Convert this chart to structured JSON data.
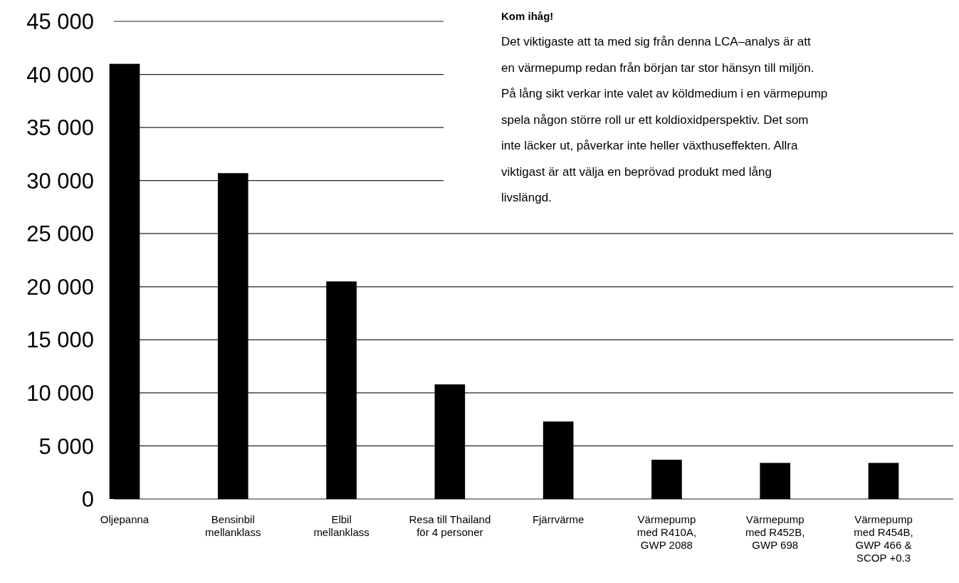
{
  "chart_data": {
    "type": "bar",
    "categories": [
      "Oljepanna",
      "Bensinbil\nmellanklass",
      "Elbil\nmellanklass",
      "Resa till Thailand\nför 4 personer",
      "Fjärrvärme",
      "Värmepump\nmed R410A,\nGWP 2088",
      "Värmepump\nmed R452B,\nGWP 698",
      "Värmepump\nmed R454B,\nGWP 466 &\nSCOP +0.3"
    ],
    "values": [
      41000,
      30700,
      20500,
      10800,
      7300,
      3700,
      3400,
      3400
    ],
    "color": "#000000",
    "ylim": [
      0,
      45000
    ],
    "yticks": [
      0,
      {
        "value": 5000,
        "label": "5 000"
      },
      {
        "value": 10000,
        "label": "10 000"
      },
      {
        "value": 15000,
        "label": "15 000"
      },
      {
        "value": 20000,
        "label": "20 000"
      },
      {
        "value": 25000,
        "label": "25 000"
      },
      {
        "value": 30000,
        "label": "30 000"
      },
      {
        "value": 35000,
        "label": "35 000"
      },
      {
        "value": 40000,
        "label": "40 000"
      },
      {
        "value": 45000,
        "label": "45 000"
      }
    ],
    "grid": "y",
    "annotations": [
      "Kom ihåg!",
      "Det viktigaste att ta med sig från denna LCA–analys är att en värmepump redan från början tar stor hänsyn till miljön. På lång sikt verkar inte valet av köldmedium i en värmepump spela någon större roll ur ett koldioxidperspektiv. Det som inte läcker ut, påverkar inte heller växthuseffekten. Allra viktigast är att välja en beprövad produkt med lång livslängd."
    ]
  }
}
